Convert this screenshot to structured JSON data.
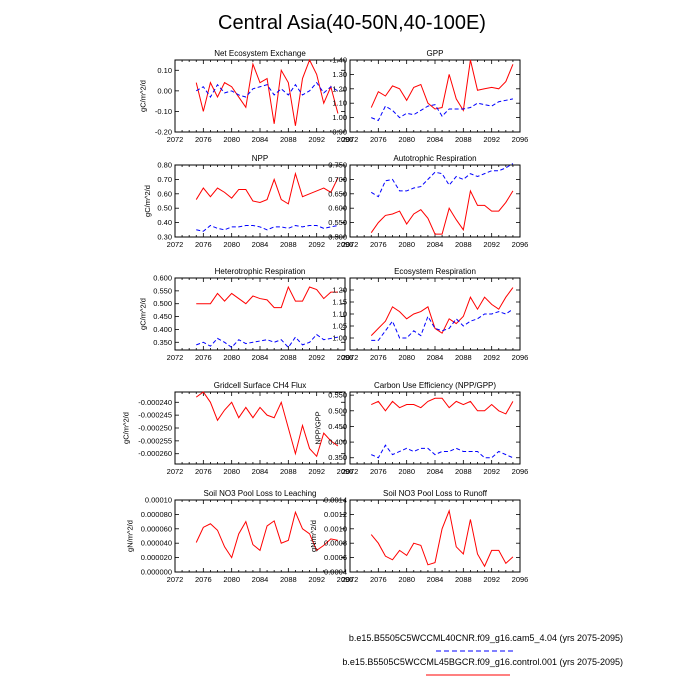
{
  "figure": {
    "title": "Central Asia(40-50N,40-100E)",
    "x_ticks": [
      "2072",
      "2076",
      "2080",
      "2084",
      "2088",
      "2092",
      "2096"
    ]
  },
  "legend": [
    {
      "label": "b.e15.B5505C5WCCML40CNR.f09_g16.cam5_4.04 (yrs 2075-2095)",
      "color": "#0000ff",
      "style": "dashed"
    },
    {
      "label": "b.e15.B5505C5WCCML45BGCR.f09_g16.control.001 (yrs 2075-2095)",
      "color": "#ff0000",
      "style": "solid"
    }
  ],
  "chart_data": [
    {
      "type": "line",
      "title": "Net Ecosystem Exchange",
      "xlabel": "",
      "ylabel": "gC/m^2/d",
      "xlim": [
        2072,
        2096
      ],
      "ylim": [
        -0.2,
        0.15
      ],
      "y_ticks": [
        -0.2,
        -0.1,
        0.0,
        0.1
      ],
      "y_tick_labels": [
        "-0.20",
        "-0.10",
        "0.00",
        "0.10"
      ],
      "x": [
        2075,
        2076,
        2077,
        2078,
        2079,
        2080,
        2081,
        2082,
        2083,
        2084,
        2085,
        2086,
        2087,
        2088,
        2089,
        2090,
        2091,
        2092,
        2093,
        2094,
        2095
      ],
      "series": [
        {
          "name": "b.e15.B5505C5WCCML45BGCR.f09_g16.control.001",
          "color": "#ff0000",
          "dash": "solid",
          "values": [
            0.04,
            -0.1,
            0.04,
            -0.03,
            0.04,
            0.02,
            -0.03,
            -0.08,
            0.13,
            0.04,
            0.06,
            -0.16,
            0.1,
            0.04,
            -0.17,
            0.06,
            0.15,
            0.08,
            -0.06,
            0.02,
            -0.11
          ]
        },
        {
          "name": "b.e15.B5505C5WCCML40CNR.f09_g16.cam5_4.04",
          "color": "#0000ff",
          "dash": "dashed",
          "values": [
            0.0,
            0.02,
            -0.03,
            0.03,
            -0.01,
            0.0,
            -0.02,
            -0.03,
            0.01,
            0.02,
            0.03,
            -0.02,
            0.01,
            -0.02,
            0.03,
            -0.02,
            0.0,
            0.04,
            -0.01,
            0.02,
            0.0
          ]
        }
      ]
    },
    {
      "type": "line",
      "title": "GPP",
      "xlabel": "",
      "ylabel": "",
      "xlim": [
        2072,
        2096
      ],
      "ylim": [
        0.9,
        1.4
      ],
      "y_ticks": [
        0.9,
        1.0,
        1.1,
        1.2,
        1.3,
        1.4
      ],
      "y_tick_labels": [
        "0.90",
        "1.00",
        "1.10",
        "1.20",
        "1.30",
        "1.40"
      ],
      "x": [
        2075,
        2076,
        2077,
        2078,
        2079,
        2080,
        2081,
        2082,
        2083,
        2084,
        2085,
        2086,
        2087,
        2088,
        2089,
        2090,
        2091,
        2092,
        2093,
        2094,
        2095
      ],
      "series": [
        {
          "name": "b.e15.B5505C5WCCML45BGCR.f09_g16.control.001",
          "color": "#ff0000",
          "dash": "solid",
          "values": [
            1.07,
            1.18,
            1.15,
            1.22,
            1.2,
            1.12,
            1.21,
            1.23,
            1.1,
            1.06,
            1.07,
            1.3,
            1.13,
            1.05,
            1.4,
            1.19,
            1.2,
            1.21,
            1.2,
            1.25,
            1.37
          ]
        },
        {
          "name": "b.e15.B5505C5WCCML40CNR.f09_g16.cam5_4.04",
          "color": "#0000ff",
          "dash": "dashed",
          "values": [
            1.0,
            0.98,
            1.08,
            1.05,
            1.0,
            1.03,
            1.02,
            1.05,
            1.08,
            1.09,
            1.01,
            1.06,
            1.06,
            1.06,
            1.07,
            1.1,
            1.09,
            1.08,
            1.11,
            1.12,
            1.13
          ]
        }
      ]
    },
    {
      "type": "line",
      "title": "NPP",
      "xlabel": "",
      "ylabel": "gC/m^2/d",
      "xlim": [
        2072,
        2096
      ],
      "ylim": [
        0.3,
        0.8
      ],
      "y_ticks": [
        0.3,
        0.4,
        0.5,
        0.6,
        0.7,
        0.8
      ],
      "y_tick_labels": [
        "0.30",
        "0.40",
        "0.50",
        "0.60",
        "0.70",
        "0.80"
      ],
      "x": [
        2075,
        2076,
        2077,
        2078,
        2079,
        2080,
        2081,
        2082,
        2083,
        2084,
        2085,
        2086,
        2087,
        2088,
        2089,
        2090,
        2091,
        2092,
        2093,
        2094,
        2095
      ],
      "series": [
        {
          "name": "b.e15.B5505C5WCCML45BGCR.f09_g16.control.001",
          "color": "#ff0000",
          "dash": "solid",
          "values": [
            0.56,
            0.64,
            0.58,
            0.64,
            0.61,
            0.57,
            0.63,
            0.63,
            0.55,
            0.54,
            0.56,
            0.7,
            0.56,
            0.53,
            0.74,
            0.58,
            0.6,
            0.62,
            0.64,
            0.61,
            0.71
          ]
        },
        {
          "name": "b.e15.B5505C5WCCML40CNR.f09_g16.cam5_4.04",
          "color": "#0000ff",
          "dash": "dashed",
          "values": [
            0.35,
            0.34,
            0.38,
            0.36,
            0.35,
            0.37,
            0.37,
            0.38,
            0.38,
            0.37,
            0.35,
            0.37,
            0.37,
            0.36,
            0.38,
            0.37,
            0.38,
            0.38,
            0.36,
            0.37,
            0.38
          ]
        }
      ]
    },
    {
      "type": "line",
      "title": "Autotrophic Respiration",
      "xlabel": "",
      "ylabel": "",
      "xlim": [
        2072,
        2096
      ],
      "ylim": [
        0.5,
        0.75
      ],
      "y_ticks": [
        0.5,
        0.55,
        0.6,
        0.65,
        0.7,
        0.75
      ],
      "y_tick_labels": [
        "0.500",
        "0.550",
        "0.600",
        "0.650",
        "0.700",
        "0.750"
      ],
      "x": [
        2075,
        2076,
        2077,
        2078,
        2079,
        2080,
        2081,
        2082,
        2083,
        2084,
        2085,
        2086,
        2087,
        2088,
        2089,
        2090,
        2091,
        2092,
        2093,
        2094,
        2095
      ],
      "series": [
        {
          "name": "b.e15.B5505C5WCCML45BGCR.f09_g16.control.001",
          "color": "#ff0000",
          "dash": "solid",
          "values": [
            0.515,
            0.55,
            0.575,
            0.58,
            0.59,
            0.545,
            0.58,
            0.595,
            0.565,
            0.51,
            0.51,
            0.6,
            0.56,
            0.525,
            0.66,
            0.61,
            0.61,
            0.59,
            0.59,
            0.62,
            0.66
          ]
        },
        {
          "name": "b.e15.B5505C5WCCML40CNR.f09_g16.cam5_4.04",
          "color": "#0000ff",
          "dash": "dashed",
          "values": [
            0.655,
            0.64,
            0.695,
            0.7,
            0.66,
            0.66,
            0.67,
            0.675,
            0.7,
            0.725,
            0.72,
            0.68,
            0.71,
            0.7,
            0.72,
            0.71,
            0.72,
            0.73,
            0.73,
            0.74,
            0.755
          ]
        }
      ]
    },
    {
      "type": "line",
      "title": "Heterotrophic Respiration",
      "xlabel": "",
      "ylabel": "gC/m^2/d",
      "xlim": [
        2072,
        2096
      ],
      "ylim": [
        0.32,
        0.6
      ],
      "y_ticks": [
        0.35,
        0.4,
        0.45,
        0.5,
        0.55,
        0.6
      ],
      "y_tick_labels": [
        "0.350",
        "0.400",
        "0.450",
        "0.500",
        "0.550",
        "0.600"
      ],
      "x": [
        2075,
        2076,
        2077,
        2078,
        2079,
        2080,
        2081,
        2082,
        2083,
        2084,
        2085,
        2086,
        2087,
        2088,
        2089,
        2090,
        2091,
        2092,
        2093,
        2094,
        2095
      ],
      "series": [
        {
          "name": "b.e15.B5505C5WCCML45BGCR.f09_g16.control.001",
          "color": "#ff0000",
          "dash": "solid",
          "values": [
            0.5,
            0.5,
            0.5,
            0.54,
            0.51,
            0.54,
            0.52,
            0.5,
            0.53,
            0.52,
            0.515,
            0.485,
            0.485,
            0.565,
            0.51,
            0.51,
            0.565,
            0.555,
            0.52,
            0.545,
            0.545
          ]
        },
        {
          "name": "b.e15.B5505C5WCCML40CNR.f09_g16.cam5_4.04",
          "color": "#0000ff",
          "dash": "dashed",
          "values": [
            0.34,
            0.35,
            0.335,
            0.365,
            0.35,
            0.33,
            0.36,
            0.345,
            0.35,
            0.355,
            0.36,
            0.35,
            0.36,
            0.33,
            0.37,
            0.34,
            0.35,
            0.38,
            0.36,
            0.365,
            0.37
          ]
        }
      ]
    },
    {
      "type": "line",
      "title": "Ecosystem Respiration",
      "xlabel": "",
      "ylabel": "",
      "xlim": [
        2072,
        2096
      ],
      "ylim": [
        0.95,
        1.25
      ],
      "y_ticks": [
        1.0,
        1.05,
        1.1,
        1.15,
        1.2
      ],
      "y_tick_labels": [
        "1.00",
        "1.05",
        "1.10",
        "1.15",
        "1.20"
      ],
      "x": [
        2075,
        2076,
        2077,
        2078,
        2079,
        2080,
        2081,
        2082,
        2083,
        2084,
        2085,
        2086,
        2087,
        2088,
        2089,
        2090,
        2091,
        2092,
        2093,
        2094,
        2095
      ],
      "series": [
        {
          "name": "b.e15.B5505C5WCCML45BGCR.f09_g16.control.001",
          "color": "#ff0000",
          "dash": "solid",
          "values": [
            1.01,
            1.04,
            1.07,
            1.13,
            1.11,
            1.08,
            1.1,
            1.11,
            1.13,
            1.04,
            1.02,
            1.08,
            1.06,
            1.09,
            1.17,
            1.12,
            1.17,
            1.14,
            1.12,
            1.17,
            1.21
          ]
        },
        {
          "name": "b.e15.B5505C5WCCML40CNR.f09_g16.cam5_4.04",
          "color": "#0000ff",
          "dash": "dashed",
          "values": [
            0.99,
            0.99,
            1.03,
            1.07,
            1.0,
            1.0,
            1.03,
            1.01,
            1.09,
            1.04,
            1.03,
            1.04,
            1.08,
            1.05,
            1.07,
            1.08,
            1.1,
            1.1,
            1.11,
            1.1,
            1.12
          ]
        }
      ]
    },
    {
      "type": "line",
      "title": "Gridcell Surface CH4 Flux",
      "xlabel": "",
      "ylabel": "gC/m^2/d",
      "xlim": [
        2072,
        2096
      ],
      "ylim": [
        -0.000264,
        -0.000236
      ],
      "y_ticks": [
        -0.00026,
        -0.000255,
        -0.00025,
        -0.000245,
        -0.00024
      ],
      "y_tick_labels": [
        "-0.000260",
        "-0.000255",
        "-0.000250",
        "-0.000245",
        "-0.000240"
      ],
      "x": [
        2075,
        2076,
        2077,
        2078,
        2079,
        2080,
        2081,
        2082,
        2083,
        2084,
        2085,
        2086,
        2087,
        2088,
        2089,
        2090,
        2091,
        2092,
        2093,
        2094,
        2095
      ],
      "series": [
        {
          "name": "b.e15.B5505C5WCCML45BGCR.f09_g16.control.001",
          "color": "#ff0000",
          "dash": "solid",
          "values": [
            -0.000238,
            -0.000236,
            -0.00024,
            -0.000247,
            -0.000243,
            -0.00024,
            -0.000246,
            -0.000242,
            -0.000246,
            -0.000242,
            -0.000245,
            -0.000246,
            -0.00024,
            -0.00025,
            -0.00026,
            -0.000249,
            -0.000258,
            -0.000261,
            -0.000252,
            -0.000255,
            -0.000257
          ]
        }
      ]
    },
    {
      "type": "line",
      "title": "Carbon Use Efficiency (NPP/GPP)",
      "xlabel": "",
      "ylabel": "NPP/GPP",
      "xlim": [
        2072,
        2096
      ],
      "ylim": [
        0.33,
        0.56
      ],
      "y_ticks": [
        0.35,
        0.4,
        0.45,
        0.5,
        0.55
      ],
      "y_tick_labels": [
        "0.350",
        "0.400",
        "0.450",
        "0.500",
        "0.550"
      ],
      "x": [
        2075,
        2076,
        2077,
        2078,
        2079,
        2080,
        2081,
        2082,
        2083,
        2084,
        2085,
        2086,
        2087,
        2088,
        2089,
        2090,
        2091,
        2092,
        2093,
        2094,
        2095
      ],
      "series": [
        {
          "name": "b.e15.B5505C5WCCML45BGCR.f09_g16.control.001",
          "color": "#ff0000",
          "dash": "solid",
          "values": [
            0.52,
            0.53,
            0.5,
            0.53,
            0.51,
            0.52,
            0.52,
            0.51,
            0.53,
            0.54,
            0.54,
            0.51,
            0.53,
            0.52,
            0.53,
            0.5,
            0.5,
            0.52,
            0.5,
            0.49,
            0.53
          ]
        },
        {
          "name": "b.e15.B5505C5WCCML40CNR.f09_g16.cam5_4.04",
          "color": "#0000ff",
          "dash": "dashed",
          "values": [
            0.36,
            0.35,
            0.39,
            0.36,
            0.37,
            0.38,
            0.37,
            0.38,
            0.38,
            0.36,
            0.37,
            0.37,
            0.38,
            0.37,
            0.37,
            0.37,
            0.35,
            0.35,
            0.37,
            0.36,
            0.35
          ]
        }
      ]
    },
    {
      "type": "line",
      "title": "Soil NO3 Pool Loss to Leaching",
      "xlabel": "",
      "ylabel": "gN/m^2/d",
      "xlim": [
        2072,
        2096
      ],
      "ylim": [
        0,
        0.0001
      ],
      "y_ticks": [
        0,
        2e-05,
        4e-05,
        6e-05,
        8e-05,
        0.0001
      ],
      "y_tick_labels": [
        "0.000000",
        "0.000020",
        "0.000040",
        "0.000060",
        "0.000080",
        "0.00010"
      ],
      "x": [
        2075,
        2076,
        2077,
        2078,
        2079,
        2080,
        2081,
        2082,
        2083,
        2084,
        2085,
        2086,
        2087,
        2088,
        2089,
        2090,
        2091,
        2092,
        2093,
        2094,
        2095
      ],
      "series": [
        {
          "name": "b.e15.B5505C5WCCML45BGCR.f09_g16.control.001",
          "color": "#ff0000",
          "dash": "solid",
          "values": [
            4.1e-05,
            6.2e-05,
            6.7e-05,
            5.8e-05,
            3.5e-05,
            2e-05,
            5.3e-05,
            7e-05,
            3.8e-05,
            3e-05,
            6.4e-05,
            7.1e-05,
            4e-05,
            4.4e-05,
            8.3e-05,
            6e-05,
            5.3e-05,
            3e-05,
            3.7e-05,
            4.6e-05,
            4.4e-05
          ]
        }
      ]
    },
    {
      "type": "line",
      "title": "Soil NO3 Pool Loss to Runoff",
      "xlabel": "",
      "ylabel": "gN/m^2/d",
      "xlim": [
        2072,
        2096
      ],
      "ylim": [
        0.0004,
        0.0014
      ],
      "y_ticks": [
        0.0004,
        0.0006,
        0.0008,
        0.001,
        0.0012,
        0.0014
      ],
      "y_tick_labels": [
        "0.0004",
        "0.0006",
        "0.0008",
        "0.0010",
        "0.0012",
        "0.0014"
      ],
      "x": [
        2075,
        2076,
        2077,
        2078,
        2079,
        2080,
        2081,
        2082,
        2083,
        2084,
        2085,
        2086,
        2087,
        2088,
        2089,
        2090,
        2091,
        2092,
        2093,
        2094,
        2095
      ],
      "series": [
        {
          "name": "b.e15.B5505C5WCCML45BGCR.f09_g16.control.001",
          "color": "#ff0000",
          "dash": "solid",
          "values": [
            0.00092,
            0.0008,
            0.00062,
            0.00057,
            0.0007,
            0.00063,
            0.0008,
            0.00077,
            0.0005,
            0.00053,
            0.001,
            0.00125,
            0.00075,
            0.00065,
            0.00113,
            0.00065,
            0.00048,
            0.0007,
            0.0007,
            0.00052,
            0.00061
          ]
        }
      ]
    }
  ]
}
